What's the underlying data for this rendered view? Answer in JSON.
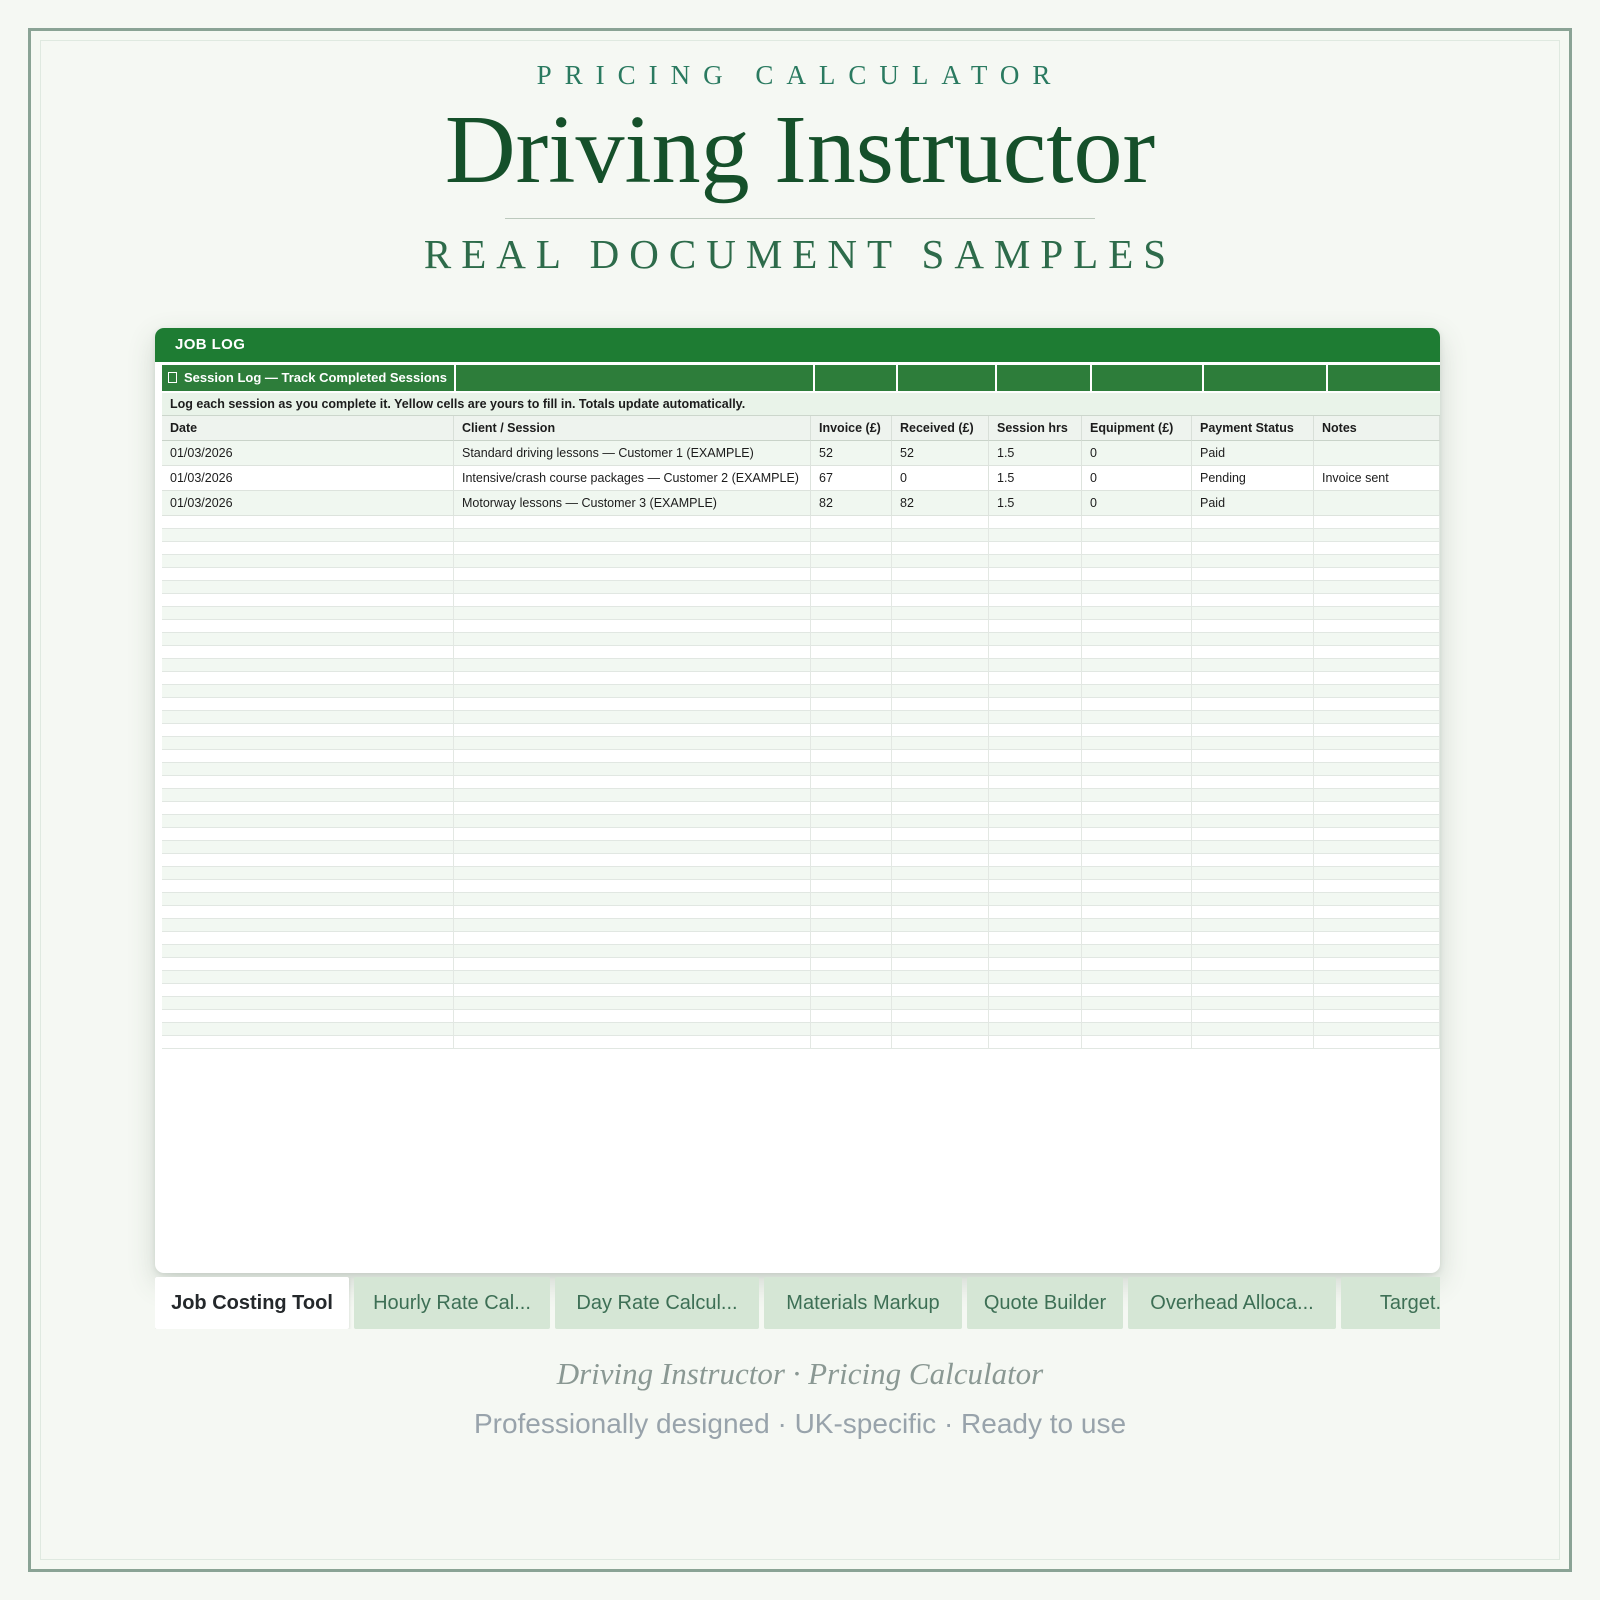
{
  "header": {
    "eyebrow": "PRICING CALCULATOR",
    "title": "Driving Instructor",
    "subtitle": "REAL DOCUMENT SAMPLES"
  },
  "sheet": {
    "title_bar": "JOB LOG",
    "section_icon": "placeholder-glyph-box",
    "section_title": "Session Log — Track Completed Sessions",
    "description": "Log each session as you complete it. Yellow cells are yours to fill in. Totals update automatically.",
    "columns": [
      "Date",
      "Client / Session",
      "Invoice (£)",
      "Received (£)",
      "Session hrs",
      "Equipment (£)",
      "Payment Status",
      "Notes"
    ],
    "rows": [
      [
        "01/03/2026",
        "Standard driving lessons — Customer 1 (EXAMPLE)",
        "52",
        "52",
        "1.5",
        "0",
        "Paid",
        ""
      ],
      [
        "01/03/2026",
        "Intensive/crash course packages — Customer 2 (EXAMPLE)",
        "67",
        "0",
        "1.5",
        "0",
        "Pending",
        "Invoice sent"
      ],
      [
        "01/03/2026",
        "Motorway lessons — Customer 3 (EXAMPLE)",
        "82",
        "82",
        "1.5",
        "0",
        "Paid",
        ""
      ]
    ]
  },
  "tabs": {
    "items": [
      {
        "label": "Job Costing Tool",
        "active": true
      },
      {
        "label": "Hourly Rate Cal...",
        "active": false
      },
      {
        "label": "Day Rate Calcul...",
        "active": false
      },
      {
        "label": "Materials Markup",
        "active": false
      },
      {
        "label": "Quote Builder",
        "active": false
      },
      {
        "label": "Overhead Alloca...",
        "active": false
      },
      {
        "label": "Target...",
        "active": false
      }
    ]
  },
  "footer": {
    "line1": "Driving Instructor · Pricing Calculator",
    "line2": "Professionally designed · UK-specific · Ready to use"
  },
  "colors": {
    "accent_green_bar": "#1e7c33",
    "accent_green_cell": "#2d7d3a",
    "title_green": "#15502a",
    "eyebrow_teal": "#2a7a60",
    "tab_inactive_bg": "#d5e6d5",
    "page_bg": "#f5f8f3"
  }
}
